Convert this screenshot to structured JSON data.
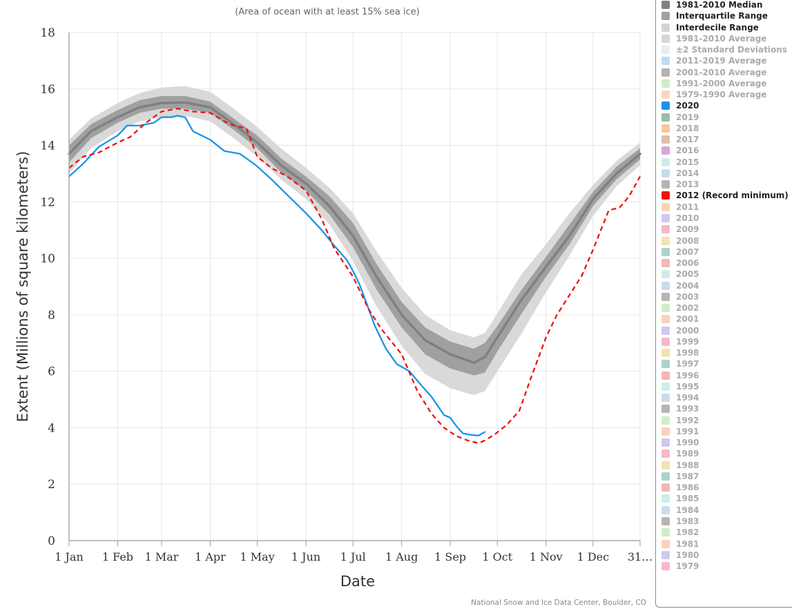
{
  "chart_data": {
    "type": "area",
    "subtitle": "(Area of ocean with at least 15% sea ice)",
    "ylabel": "Extent (Millions of square kilometers)",
    "xlabel": "Date",
    "ylim": [
      0,
      18
    ],
    "y_ticks": [
      "0",
      "2",
      "4",
      "6",
      "8",
      "10",
      "12",
      "14",
      "16",
      "18"
    ],
    "x_ticks": [
      "1 Jan",
      "1 Feb",
      "1 Mar",
      "1 Apr",
      "1 May",
      "1 Jun",
      "1 Jul",
      "1 Aug",
      "1 Sep",
      "1 Oct",
      "1 Nov",
      "1 Dec",
      "31…"
    ],
    "x_tick_days": [
      1,
      32,
      60,
      91,
      121,
      152,
      182,
      213,
      244,
      274,
      305,
      335,
      365
    ],
    "xlim_days": [
      1,
      365
    ],
    "grid": true,
    "credit": "National Snow and Ice Data Center, Boulder, CO",
    "series": [
      {
        "name": "1981-2010 Median",
        "kind": "line",
        "color": "#808080",
        "x": [
          1,
          15,
          32,
          46,
          60,
          75,
          91,
          106,
          121,
          136,
          152,
          167,
          182,
          197,
          213,
          228,
          244,
          259,
          266,
          274,
          289,
          305,
          320,
          335,
          350,
          365
        ],
        "y": [
          13.7,
          14.5,
          15.0,
          15.35,
          15.5,
          15.52,
          15.35,
          14.75,
          14.1,
          13.3,
          12.65,
          11.85,
          10.8,
          9.35,
          8.0,
          7.1,
          6.6,
          6.3,
          6.5,
          7.2,
          8.5,
          9.7,
          10.8,
          12.1,
          13.0,
          13.7
        ]
      },
      {
        "name": "Interquartile Range",
        "kind": "band",
        "color": "#a0a0a0",
        "x": [
          1,
          15,
          32,
          46,
          60,
          75,
          91,
          106,
          121,
          136,
          152,
          167,
          182,
          197,
          213,
          228,
          244,
          259,
          266,
          274,
          289,
          305,
          320,
          335,
          350,
          365
        ],
        "low": [
          13.4,
          14.25,
          14.8,
          15.15,
          15.3,
          15.3,
          15.15,
          14.55,
          13.9,
          13.05,
          12.4,
          11.55,
          10.4,
          8.9,
          7.55,
          6.6,
          6.1,
          5.85,
          5.95,
          6.7,
          8.0,
          9.35,
          10.5,
          11.85,
          12.8,
          13.5
        ],
        "high": [
          14.0,
          14.75,
          15.25,
          15.6,
          15.75,
          15.75,
          15.55,
          14.95,
          14.35,
          13.55,
          12.9,
          12.2,
          11.25,
          9.8,
          8.45,
          7.55,
          7.05,
          6.8,
          7.0,
          7.6,
          8.85,
          10.05,
          11.2,
          12.35,
          13.25,
          13.9
        ]
      },
      {
        "name": "Interdecile Range",
        "kind": "band",
        "color": "#d9d9d9",
        "x": [
          1,
          15,
          32,
          46,
          60,
          75,
          91,
          106,
          121,
          136,
          152,
          167,
          182,
          197,
          213,
          228,
          244,
          259,
          266,
          274,
          289,
          305,
          320,
          335,
          350,
          365
        ],
        "low": [
          13.0,
          13.9,
          14.5,
          14.85,
          15.0,
          15.05,
          14.85,
          14.25,
          13.6,
          12.8,
          12.1,
          11.2,
          9.9,
          8.3,
          6.9,
          5.9,
          5.4,
          5.15,
          5.3,
          6.0,
          7.3,
          8.8,
          10.1,
          11.5,
          12.55,
          13.3
        ],
        "high": [
          14.2,
          14.95,
          15.5,
          15.85,
          16.05,
          16.1,
          15.9,
          15.3,
          14.65,
          13.9,
          13.2,
          12.5,
          11.6,
          10.25,
          8.95,
          8.0,
          7.45,
          7.2,
          7.35,
          8.05,
          9.4,
          10.5,
          11.6,
          12.6,
          13.45,
          14.1
        ]
      },
      {
        "name": "2020",
        "kind": "line",
        "color": "#1a93e8",
        "x": [
          1,
          10,
          20,
          32,
          38,
          46,
          55,
          60,
          66,
          70,
          75,
          80,
          91,
          100,
          110,
          120,
          130,
          140,
          152,
          162,
          170,
          178,
          182,
          186,
          190,
          196,
          203,
          210,
          218,
          224,
          232,
          240,
          244,
          248,
          252,
          257,
          262,
          266
        ],
        "y": [
          12.9,
          13.35,
          13.95,
          14.35,
          14.7,
          14.7,
          14.8,
          15.0,
          15.0,
          15.05,
          15.0,
          14.5,
          14.2,
          13.8,
          13.7,
          13.3,
          12.8,
          12.25,
          11.6,
          11.0,
          10.45,
          9.95,
          9.55,
          9.1,
          8.5,
          7.6,
          6.8,
          6.25,
          6.0,
          5.6,
          5.1,
          4.45,
          4.35,
          4.05,
          3.8,
          3.75,
          3.72,
          3.85
        ]
      },
      {
        "name": "2012 (Record minimum)",
        "kind": "dashed",
        "color": "#ee1111",
        "x": [
          1,
          10,
          20,
          32,
          40,
          50,
          60,
          70,
          80,
          91,
          100,
          106,
          114,
          121,
          130,
          140,
          152,
          162,
          170,
          182,
          192,
          200,
          213,
          223,
          232,
          240,
          248,
          255,
          262,
          266,
          272,
          280,
          288,
          295,
          305,
          312,
          320,
          328,
          335,
          340,
          345,
          352,
          358,
          365
        ],
        "y": [
          13.2,
          13.6,
          13.75,
          14.1,
          14.3,
          14.8,
          15.2,
          15.3,
          15.2,
          15.15,
          14.85,
          14.7,
          14.6,
          13.6,
          13.2,
          12.9,
          12.4,
          11.4,
          10.35,
          9.35,
          8.2,
          7.5,
          6.6,
          5.3,
          4.5,
          4.0,
          3.7,
          3.55,
          3.45,
          3.55,
          3.75,
          4.1,
          4.6,
          5.7,
          7.2,
          8.0,
          8.7,
          9.4,
          10.3,
          11.0,
          11.7,
          11.8,
          12.2,
          12.9
        ]
      }
    ]
  },
  "legend": [
    {
      "label": "1981-2010 Median",
      "color": "#808080",
      "on": true
    },
    {
      "label": "Interquartile Range",
      "color": "#a0a0a0",
      "on": true
    },
    {
      "label": "Interdecile Range",
      "color": "#d3d3d3",
      "on": true
    },
    {
      "label": "1981-2010 Average",
      "color": "#d6d6d6",
      "on": false
    },
    {
      "label": "±2 Standard Deviations",
      "color": "#ececec",
      "on": false
    },
    {
      "label": "2011-2019 Average",
      "color": "#c0dcf2",
      "on": false
    },
    {
      "label": "2001-2010 Average",
      "color": "#b4b4b4",
      "on": false
    },
    {
      "label": "1991-2000 Average",
      "color": "#cdeec8",
      "on": false
    },
    {
      "label": "1979-1990 Average",
      "color": "#f8d9bf",
      "on": false
    },
    {
      "label": "2020",
      "color": "#1a93e8",
      "on": true
    },
    {
      "label": "2019",
      "color": "#9bbfa3",
      "on": false
    },
    {
      "label": "2018",
      "color": "#f6c89a",
      "on": false
    },
    {
      "label": "2017",
      "color": "#ddbfae",
      "on": false
    },
    {
      "label": "2016",
      "color": "#d7a6dc",
      "on": false
    },
    {
      "label": "2015",
      "color": "#cdeee8",
      "on": false
    },
    {
      "label": "2014",
      "color": "#c9dcef",
      "on": false
    },
    {
      "label": "2013",
      "color": "#b5b5b5",
      "on": false
    },
    {
      "label": "2012 (Record minimum)",
      "color": "#ee1111",
      "on": true
    },
    {
      "label": "2011",
      "color": "#f8d3b8",
      "on": false
    },
    {
      "label": "2010",
      "color": "#cfc8f0",
      "on": false
    },
    {
      "label": "2009",
      "color": "#f5b8c8",
      "on": false
    },
    {
      "label": "2008",
      "color": "#f2e2b0",
      "on": false
    },
    {
      "label": "2007",
      "color": "#a9d4cc",
      "on": false
    },
    {
      "label": "2006",
      "color": "#f4b6b6",
      "on": false
    },
    {
      "label": "2005",
      "color": "#cdeee8",
      "on": false
    },
    {
      "label": "2004",
      "color": "#c9dcef",
      "on": false
    },
    {
      "label": "2003",
      "color": "#b5b5b5",
      "on": false
    },
    {
      "label": "2002",
      "color": "#cdeec8",
      "on": false
    },
    {
      "label": "2001",
      "color": "#f8d3b8",
      "on": false
    },
    {
      "label": "2000",
      "color": "#cfc8f0",
      "on": false
    },
    {
      "label": "1999",
      "color": "#f5b8c8",
      "on": false
    },
    {
      "label": "1998",
      "color": "#f2e2b0",
      "on": false
    },
    {
      "label": "1997",
      "color": "#a9d4cc",
      "on": false
    },
    {
      "label": "1996",
      "color": "#f4b6b6",
      "on": false
    },
    {
      "label": "1995",
      "color": "#cdeee8",
      "on": false
    },
    {
      "label": "1994",
      "color": "#c9dcef",
      "on": false
    },
    {
      "label": "1993",
      "color": "#b5b5b5",
      "on": false
    },
    {
      "label": "1992",
      "color": "#cdeec8",
      "on": false
    },
    {
      "label": "1991",
      "color": "#f8d3b8",
      "on": false
    },
    {
      "label": "1990",
      "color": "#cfc8f0",
      "on": false
    },
    {
      "label": "1989",
      "color": "#f5b8c8",
      "on": false
    },
    {
      "label": "1988",
      "color": "#f2e2b0",
      "on": false
    },
    {
      "label": "1987",
      "color": "#a9d4cc",
      "on": false
    },
    {
      "label": "1986",
      "color": "#f4b6b6",
      "on": false
    },
    {
      "label": "1985",
      "color": "#cdeee8",
      "on": false
    },
    {
      "label": "1984",
      "color": "#c9dcef",
      "on": false
    },
    {
      "label": "1983",
      "color": "#b5b5b5",
      "on": false
    },
    {
      "label": "1982",
      "color": "#cdeec8",
      "on": false
    },
    {
      "label": "1981",
      "color": "#f8d3b8",
      "on": false
    },
    {
      "label": "1980",
      "color": "#cfc8f0",
      "on": false
    },
    {
      "label": "1979",
      "color": "#f5b8c8",
      "on": false
    }
  ]
}
